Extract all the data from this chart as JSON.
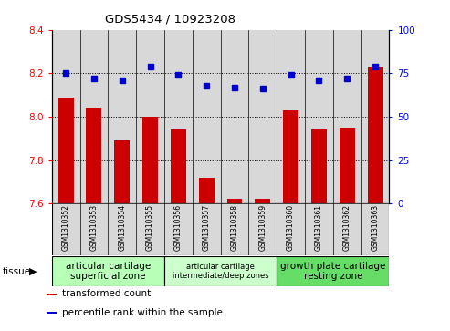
{
  "title": "GDS5434 / 10923208",
  "samples": [
    "GSM1310352",
    "GSM1310353",
    "GSM1310354",
    "GSM1310355",
    "GSM1310356",
    "GSM1310357",
    "GSM1310358",
    "GSM1310359",
    "GSM1310360",
    "GSM1310361",
    "GSM1310362",
    "GSM1310363"
  ],
  "bar_values": [
    8.09,
    8.04,
    7.89,
    8.0,
    7.94,
    7.72,
    7.62,
    7.62,
    8.03,
    7.94,
    7.95,
    8.23
  ],
  "percentile_values": [
    75,
    72,
    71,
    79,
    74,
    68,
    67,
    66,
    74,
    71,
    72,
    79
  ],
  "ylim_left": [
    7.6,
    8.4
  ],
  "ylim_right": [
    0,
    100
  ],
  "yticks_left": [
    7.6,
    7.8,
    8.0,
    8.2,
    8.4
  ],
  "yticks_right": [
    0,
    25,
    50,
    75,
    100
  ],
  "bar_color": "#cc0000",
  "dot_color": "#0000cc",
  "bar_bottom": 7.6,
  "gridlines": [
    7.8,
    8.0,
    8.2
  ],
  "tissue_groups": [
    {
      "label": "articular cartilage\nsuperficial zone",
      "start": 0,
      "end": 3,
      "color": "#b8ffb8",
      "fontsize": 7.5
    },
    {
      "label": "articular cartilage\nintermediate/deep zones",
      "start": 4,
      "end": 7,
      "color": "#ccffcc",
      "fontsize": 6.0
    },
    {
      "label": "growth plate cartilage\nresting zone",
      "start": 8,
      "end": 11,
      "color": "#66dd66",
      "fontsize": 7.5
    }
  ],
  "legend_items": [
    {
      "color": "#cc0000",
      "label": "transformed count"
    },
    {
      "color": "#0000cc",
      "label": "percentile rank within the sample"
    }
  ],
  "tissue_label": "tissue",
  "bg_color": "#d8d8d8"
}
